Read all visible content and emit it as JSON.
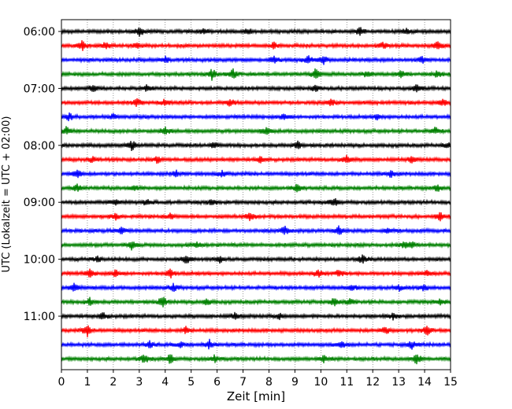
{
  "chart_data": {
    "type": "line",
    "subtype": "helicorder",
    "title": "",
    "xlabel": "Zeit  [min]",
    "ylabel": "UTC (Lokalzeit = UTC + 02:00)",
    "xlim": [
      0,
      15
    ],
    "x_ticks": [
      0,
      1,
      2,
      3,
      4,
      5,
      6,
      7,
      8,
      9,
      10,
      11,
      12,
      13,
      14,
      15
    ],
    "x_tick_labels": [
      "0",
      "1",
      "2",
      "3",
      "4",
      "5",
      "6",
      "7",
      "8",
      "9",
      "10",
      "11",
      "12",
      "13",
      "14",
      "15"
    ],
    "y_ticks": [
      "06:00",
      "07:00",
      "08:00",
      "09:00",
      "10:00",
      "11:00"
    ],
    "traces_per_hour": 4,
    "trace_minutes": 15,
    "vertical_grid": true,
    "grid_style": "dotted",
    "color_cycle": [
      "#000000",
      "#ff0000",
      "#0000ff",
      "#008000"
    ],
    "traces": [
      {
        "start": "06:00",
        "color": "#000000",
        "events": [
          [
            3.0,
            0.9
          ],
          [
            5.5,
            0.6
          ],
          [
            7.2,
            0.5
          ],
          [
            11.5,
            0.8
          ],
          [
            13.3,
            0.6
          ]
        ]
      },
      {
        "start": "06:15",
        "color": "#ff0000",
        "events": [
          [
            0.8,
            0.9
          ],
          [
            1.7,
            0.6
          ],
          [
            2.9,
            0.5
          ],
          [
            8.2,
            0.6
          ],
          [
            12.4,
            0.5
          ],
          [
            14.5,
            0.8
          ]
        ]
      },
      {
        "start": "06:30",
        "color": "#0000ff",
        "events": [
          [
            4.0,
            0.6
          ],
          [
            8.2,
            0.6
          ],
          [
            9.5,
            0.7
          ],
          [
            10.1,
            0.8
          ],
          [
            13.9,
            0.5
          ]
        ]
      },
      {
        "start": "06:45",
        "color": "#008000",
        "events": [
          [
            5.8,
            1.0
          ],
          [
            6.6,
            0.9
          ],
          [
            9.8,
            1.0
          ],
          [
            11.8,
            0.6
          ],
          [
            13.1,
            0.8
          ],
          [
            14.5,
            0.6
          ]
        ]
      },
      {
        "start": "07:00",
        "color": "#000000",
        "events": [
          [
            1.2,
            0.6
          ],
          [
            3.3,
            0.5
          ],
          [
            9.8,
            0.6
          ],
          [
            13.7,
            0.6
          ]
        ]
      },
      {
        "start": "07:15",
        "color": "#ff0000",
        "events": [
          [
            2.9,
            0.7
          ],
          [
            4.0,
            0.6
          ],
          [
            6.5,
            0.7
          ],
          [
            10.4,
            0.6
          ],
          [
            14.7,
            0.7
          ]
        ]
      },
      {
        "start": "07:30",
        "color": "#0000ff",
        "events": [
          [
            0.3,
            0.6
          ],
          [
            2.0,
            0.5
          ],
          [
            8.6,
            0.6
          ],
          [
            12.2,
            0.5
          ]
        ]
      },
      {
        "start": "07:45",
        "color": "#008000",
        "events": [
          [
            0.2,
            0.7
          ],
          [
            4.0,
            0.8
          ],
          [
            7.9,
            0.6
          ],
          [
            14.4,
            0.6
          ]
        ]
      },
      {
        "start": "08:00",
        "color": "#000000",
        "events": [
          [
            2.7,
            1.0
          ],
          [
            5.9,
            0.6
          ],
          [
            9.1,
            0.7
          ],
          [
            14.9,
            0.5
          ]
        ]
      },
      {
        "start": "08:15",
        "color": "#ff0000",
        "events": [
          [
            1.2,
            0.5
          ],
          [
            3.7,
            0.6
          ],
          [
            7.7,
            0.6
          ],
          [
            11.0,
            0.8
          ],
          [
            13.5,
            0.6
          ]
        ]
      },
      {
        "start": "08:30",
        "color": "#0000ff",
        "events": [
          [
            0.6,
            0.8
          ],
          [
            4.4,
            0.6
          ],
          [
            6.2,
            0.5
          ],
          [
            12.7,
            0.6
          ]
        ]
      },
      {
        "start": "08:45",
        "color": "#008000",
        "events": [
          [
            0.6,
            0.6
          ],
          [
            2.8,
            0.5
          ],
          [
            9.1,
            0.8
          ],
          [
            14.5,
            0.6
          ]
        ]
      },
      {
        "start": "09:00",
        "color": "#000000",
        "events": [
          [
            2.1,
            0.5
          ],
          [
            3.3,
            0.6
          ],
          [
            5.8,
            0.5
          ],
          [
            10.5,
            0.8
          ]
        ]
      },
      {
        "start": "09:15",
        "color": "#ff0000",
        "events": [
          [
            2.1,
            0.5
          ],
          [
            4.2,
            0.5
          ],
          [
            7.3,
            0.8
          ],
          [
            14.6,
            0.7
          ]
        ]
      },
      {
        "start": "09:30",
        "color": "#0000ff",
        "events": [
          [
            2.3,
            0.6
          ],
          [
            8.6,
            0.8
          ],
          [
            10.7,
            0.9
          ],
          [
            12.6,
            0.5
          ]
        ]
      },
      {
        "start": "09:45",
        "color": "#008000",
        "events": [
          [
            2.7,
            0.8
          ],
          [
            5.2,
            0.5
          ],
          [
            13.2,
            0.5
          ],
          [
            13.5,
            0.6
          ]
        ]
      },
      {
        "start": "10:00",
        "color": "#000000",
        "events": [
          [
            1.4,
            0.5
          ],
          [
            4.8,
            0.8
          ],
          [
            6.1,
            0.6
          ],
          [
            11.6,
            0.7
          ]
        ]
      },
      {
        "start": "10:15",
        "color": "#ff0000",
        "events": [
          [
            1.1,
            0.7
          ],
          [
            2.1,
            0.7
          ],
          [
            4.2,
            0.8
          ],
          [
            9.9,
            0.7
          ],
          [
            10.7,
            0.6
          ],
          [
            14.1,
            0.5
          ]
        ]
      },
      {
        "start": "10:30",
        "color": "#0000ff",
        "events": [
          [
            0.5,
            0.8
          ],
          [
            4.3,
            0.7
          ],
          [
            11.2,
            0.6
          ],
          [
            13.0,
            0.5
          ],
          [
            14.0,
            0.6
          ]
        ]
      },
      {
        "start": "10:45",
        "color": "#008000",
        "events": [
          [
            1.1,
            0.7
          ],
          [
            3.9,
            1.0
          ],
          [
            5.6,
            0.6
          ],
          [
            10.5,
            0.7
          ],
          [
            11.1,
            0.6
          ],
          [
            14.6,
            0.5
          ]
        ]
      },
      {
        "start": "11:00",
        "color": "#000000",
        "events": [
          [
            1.6,
            0.7
          ],
          [
            6.7,
            0.6
          ],
          [
            8.4,
            0.5
          ],
          [
            12.8,
            0.6
          ]
        ]
      },
      {
        "start": "11:15",
        "color": "#ff0000",
        "events": [
          [
            1.0,
            1.0
          ],
          [
            4.8,
            0.6
          ],
          [
            12.5,
            0.6
          ],
          [
            14.1,
            0.8
          ]
        ]
      },
      {
        "start": "11:30",
        "color": "#0000ff",
        "events": [
          [
            3.4,
            0.6
          ],
          [
            4.6,
            0.5
          ],
          [
            5.7,
            0.8
          ],
          [
            10.8,
            0.6
          ],
          [
            13.5,
            0.7
          ]
        ]
      },
      {
        "start": "11:45",
        "color": "#008000",
        "events": [
          [
            3.2,
            0.8
          ],
          [
            4.2,
            0.9
          ],
          [
            5.9,
            0.6
          ],
          [
            10.1,
            0.6
          ],
          [
            13.7,
            1.0
          ]
        ]
      }
    ]
  }
}
